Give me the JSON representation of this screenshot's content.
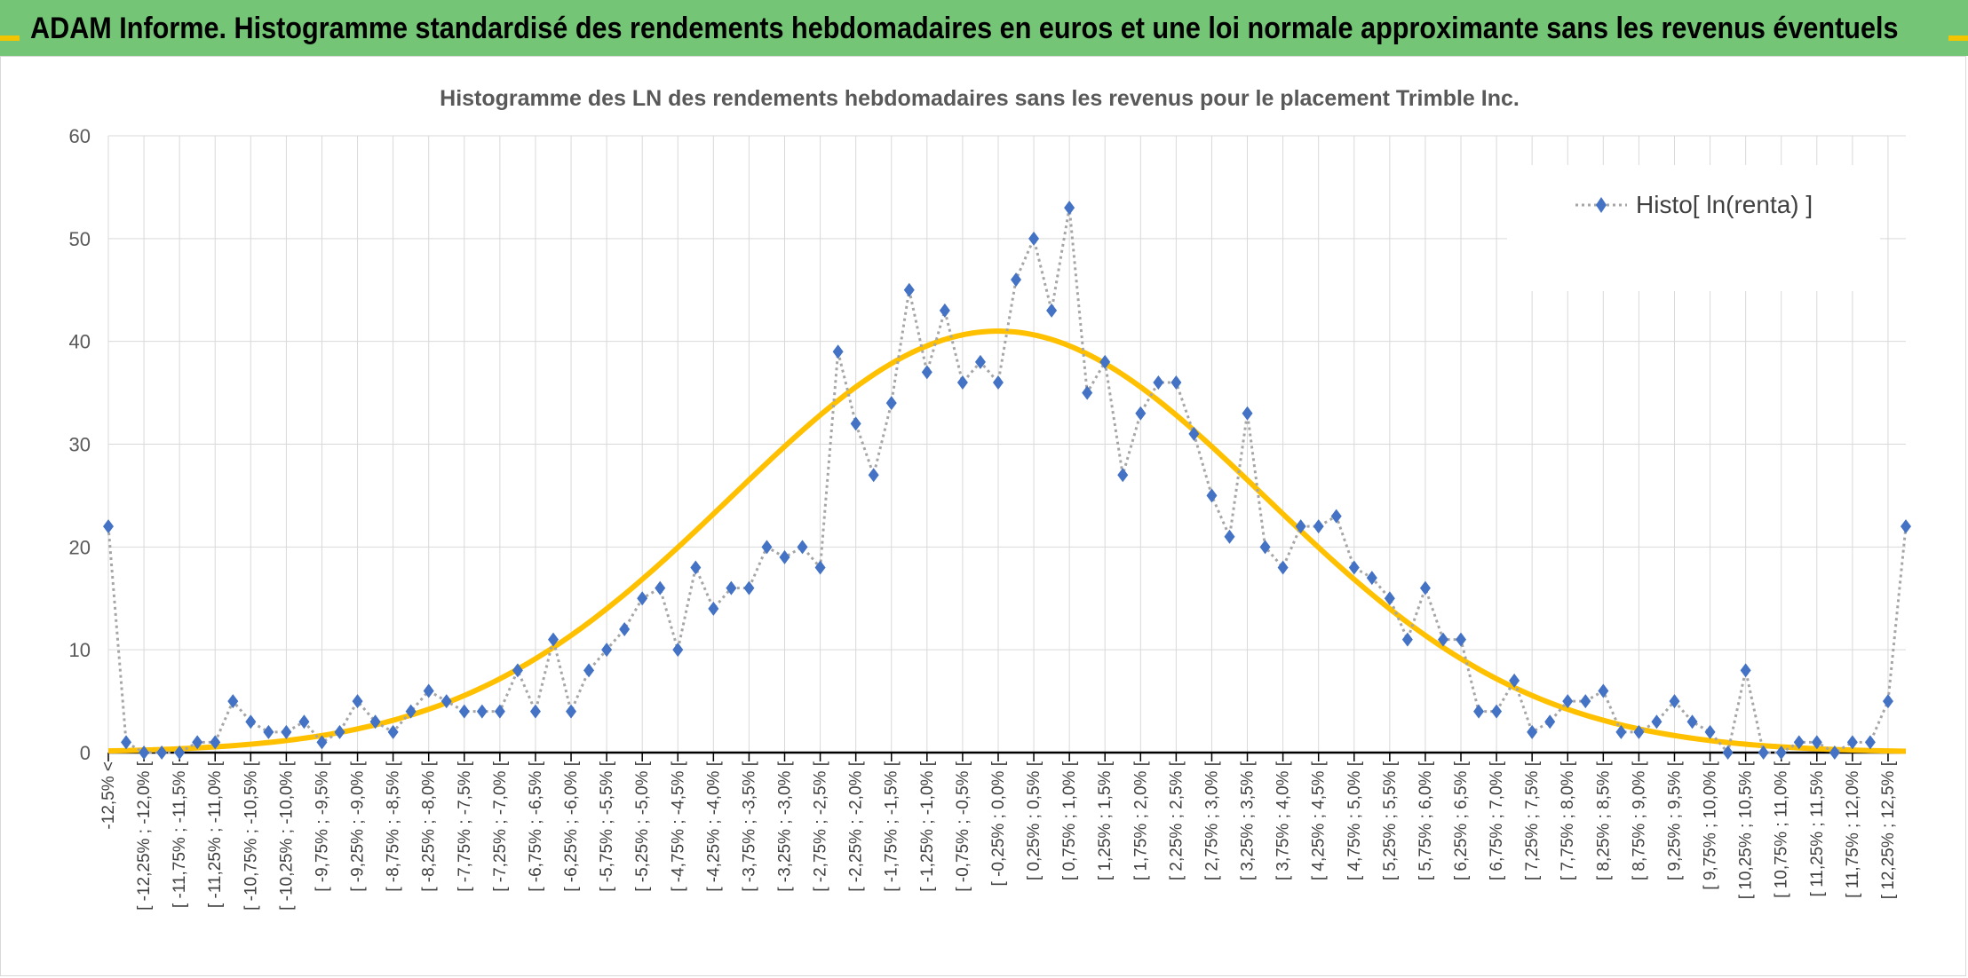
{
  "header": {
    "title": "ADAM Informe. Histogramme standardisé des rendements hebdomadaires en euros et une loi normale approximante sans les revenus éventuels"
  },
  "colors": {
    "header_bg": "#74c575",
    "accent": "#f2c500",
    "series_marker": "#4472c4",
    "series_line": "#a6a6a6",
    "normal_curve": "#ffc000"
  },
  "chart_data": {
    "type": "line",
    "title": "Histogramme des LN des rendements hebdomadaires sans les revenus pour le placement Trimble Inc.",
    "xlabel": "",
    "ylabel": "",
    "ylim": [
      0,
      60
    ],
    "yticks": [
      0,
      10,
      20,
      30,
      40,
      50,
      60
    ],
    "grid": true,
    "legend_position": "top-right",
    "categories": [
      "-12,5% <",
      "[ -12,25% ; -12,0% [",
      "[ -11,75% ; -11,5% [",
      "[ -11,25% ; -11,0% [",
      "[ -10,75% ; -10,5% [",
      "[ -10,25% ; -10,0% [",
      "[ -9,75% ; -9,5% [",
      "[ -9,25% ; -9,0% [",
      "[ -8,75% ; -8,5% [",
      "[ -8,25% ; -8,0% [",
      "[ -7,75% ; -7,5% [",
      "[ -7,25% ; -7,0% [",
      "[ -6,75% ; -6,5% [",
      "[ -6,25% ; -6,0% [",
      "[ -5,75% ; -5,5% [",
      "[ -5,25% ; -5,0% [",
      "[ -4,75% ; -4,5% [",
      "[ -4,25% ; -4,0% [",
      "[ -3,75% ; -3,5% [",
      "[ -3,25% ; -3,0% [",
      "[ -2,75% ; -2,5% [",
      "[ -2,25% ; -2,0% [",
      "[ -1,75% ; -1,5% [",
      "[ -1,25% ; -1,0% [",
      "[ -0,75% ; -0,5% [",
      "[ -0,25% ; 0,0% [",
      "[ 0,25% ; 0,5% [",
      "[ 0,75% ; 1,0% [",
      "[ 1,25% ; 1,5% [",
      "[ 1,75% ; 2,0% [",
      "[ 2,25% ; 2,5% [",
      "[ 2,75% ; 3,0% [",
      "[ 3,25% ; 3,5% [",
      "[ 3,75% ; 4,0% [",
      "[ 4,25% ; 4,5% [",
      "[ 4,75% ; 5,0% [",
      "[ 5,25% ; 5,5% [",
      "[ 5,75% ; 6,0% [",
      "[ 6,25% ; 6,5% [",
      "[ 6,75% ; 7,0% [",
      "[ 7,25% ; 7,5% [",
      "[ 7,75% ; 8,0% [",
      "[ 8,25% ; 8,5% [",
      "[ 8,75% ; 9,0% [",
      "[ 9,25% ; 9,5% [",
      "[ 9,75% ; 10,0% [",
      "[ 10,25% ; 10,5% [",
      "[ 10,75% ; 11,0% [",
      "[ 11,25% ; 11,5% [",
      "[ 11,75% ; 12,0% [",
      "[ 12,25% ; 12,5% ["
    ],
    "x": [
      -12.5,
      -12.25,
      -12,
      -11.75,
      -11.5,
      -11.25,
      -11,
      -10.75,
      -10.5,
      -10.25,
      -10,
      -9.75,
      -9.5,
      -9.25,
      -9,
      -8.75,
      -8.5,
      -8.25,
      -8,
      -7.75,
      -7.5,
      -7.25,
      -7,
      -6.75,
      -6.5,
      -6.25,
      -6,
      -5.75,
      -5.5,
      -5.25,
      -5,
      -4.75,
      -4.5,
      -4.25,
      -4,
      -3.75,
      -3.5,
      -3.25,
      -3,
      -2.75,
      -2.5,
      -2.25,
      -2,
      -1.75,
      -1.5,
      -1.25,
      -1,
      -0.75,
      -0.5,
      -0.25,
      0,
      0.25,
      0.5,
      0.75,
      1,
      1.25,
      1.5,
      1.75,
      2,
      2.25,
      2.5,
      2.75,
      3,
      3.25,
      3.5,
      3.75,
      4,
      4.25,
      4.5,
      4.75,
      5,
      5.25,
      5.5,
      5.75,
      6,
      6.25,
      6.5,
      6.75,
      7,
      7.25,
      7.5,
      7.75,
      8,
      8.25,
      8.5,
      8.75,
      9,
      9.25,
      9.5,
      9.75,
      10,
      10.25,
      10.5,
      10.75,
      11,
      11.25,
      11.5,
      11.75,
      12,
      12.25,
      12.5,
      12.75
    ],
    "series": [
      {
        "name": "Histo[ ln(renta) ]",
        "style": "dotted-line-diamond",
        "values": [
          22,
          1,
          0,
          0,
          0,
          1,
          1,
          5,
          3,
          2,
          2,
          3,
          1,
          2,
          5,
          3,
          2,
          4,
          6,
          5,
          4,
          4,
          4,
          8,
          4,
          11,
          4,
          8,
          10,
          12,
          15,
          16,
          10,
          18,
          14,
          16,
          16,
          20,
          19,
          20,
          18,
          39,
          32,
          27,
          34,
          45,
          37,
          43,
          36,
          38,
          36,
          46,
          50,
          43,
          53,
          35,
          38,
          27,
          33,
          36,
          36,
          31,
          25,
          21,
          33,
          20,
          18,
          22,
          22,
          23,
          18,
          17,
          15,
          11,
          16,
          11,
          11,
          4,
          4,
          7,
          2,
          3,
          5,
          5,
          6,
          2,
          2,
          3,
          5,
          3,
          2,
          0,
          8,
          0,
          0,
          1,
          1,
          0,
          1,
          1,
          5,
          22
        ]
      },
      {
        "name": "",
        "style": "smooth-line",
        "curve": "normal",
        "mean": 0.0,
        "stdev": 3.75,
        "peak": 41,
        "x_from": -12.5,
        "x_to": 12.75
      }
    ]
  }
}
